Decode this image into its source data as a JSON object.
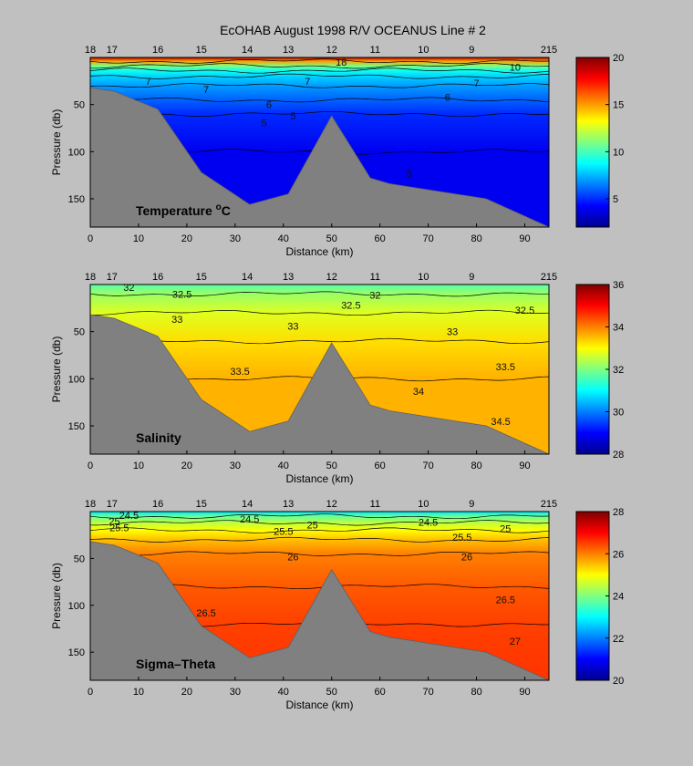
{
  "title": "EcOHAB   August 1998   R/V OCEANUS   Line # 2",
  "chart_data": [
    {
      "type": "heatmap",
      "panel_label_text": "Temperature ",
      "panel_label_sup": "o",
      "panel_label_suffix": "C",
      "xlabel": "Distance (km)",
      "ylabel": "Pressure (db)",
      "xlim": [
        0,
        95
      ],
      "ylim": [
        0,
        180
      ],
      "y_inverted": true,
      "x_ticks": [
        0,
        10,
        20,
        30,
        40,
        50,
        60,
        70,
        80,
        90
      ],
      "y_ticks": [
        50,
        100,
        150
      ],
      "station_labels": [
        "18",
        "17",
        "16",
        "15",
        "14",
        "13",
        "12",
        "11",
        "10",
        "9",
        "215"
      ],
      "station_km": [
        0,
        4.5,
        14,
        23,
        32.5,
        41,
        50,
        59,
        69,
        79,
        95
      ],
      "colorbar": {
        "min": 2,
        "max": 20,
        "ticks": [
          5,
          10,
          15,
          20
        ]
      },
      "bathymetry": [
        [
          0,
          32
        ],
        [
          5,
          36
        ],
        [
          14,
          55
        ],
        [
          23,
          122
        ],
        [
          33,
          156
        ],
        [
          41,
          145
        ],
        [
          50,
          62
        ],
        [
          58,
          128
        ],
        [
          62,
          134
        ],
        [
          82,
          150
        ],
        [
          95,
          180
        ]
      ],
      "field": {
        "surface_value": 19,
        "bands": [
          {
            "depth": 0,
            "value": 19
          },
          {
            "depth": 4,
            "value": 15
          },
          {
            "depth": 9,
            "value": 11
          },
          {
            "depth": 14,
            "value": 9
          },
          {
            "depth": 20,
            "value": 8
          },
          {
            "depth": 30,
            "value": 7
          },
          {
            "depth": 45,
            "value": 6
          },
          {
            "depth": 60,
            "value": 5
          },
          {
            "depth": 100,
            "value": 4
          },
          {
            "depth": 180,
            "value": 4
          }
        ]
      },
      "contour_labels": [
        {
          "x": 12,
          "y": 25,
          "text": "7"
        },
        {
          "x": 24,
          "y": 34,
          "text": "7"
        },
        {
          "x": 45,
          "y": 25,
          "text": "7"
        },
        {
          "x": 80,
          "y": 27,
          "text": "7"
        },
        {
          "x": 37,
          "y": 50,
          "text": "6"
        },
        {
          "x": 74,
          "y": 42,
          "text": "6"
        },
        {
          "x": 42,
          "y": 62,
          "text": "5"
        },
        {
          "x": 36,
          "y": 69,
          "text": "5"
        },
        {
          "x": 66,
          "y": 123,
          "text": "5"
        },
        {
          "x": 52,
          "y": 5,
          "text": "18"
        },
        {
          "x": 88,
          "y": 10,
          "text": "10"
        }
      ]
    },
    {
      "type": "heatmap",
      "panel_label_text": "Salinity",
      "panel_label_sup": "",
      "panel_label_suffix": "",
      "xlabel": "Distance (km)",
      "ylabel": "Pressure (db)",
      "xlim": [
        0,
        95
      ],
      "ylim": [
        0,
        180
      ],
      "y_inverted": true,
      "x_ticks": [
        0,
        10,
        20,
        30,
        40,
        50,
        60,
        70,
        80,
        90
      ],
      "y_ticks": [
        50,
        100,
        150
      ],
      "station_labels": [
        "18",
        "17",
        "16",
        "15",
        "14",
        "13",
        "12",
        "11",
        "10",
        "9",
        "215"
      ],
      "station_km": [
        0,
        4.5,
        14,
        23,
        32.5,
        41,
        50,
        59,
        69,
        79,
        95
      ],
      "colorbar": {
        "min": 28,
        "max": 36,
        "ticks": [
          28,
          30,
          32,
          34,
          36
        ]
      },
      "bathymetry": [
        [
          0,
          32
        ],
        [
          5,
          36
        ],
        [
          14,
          55
        ],
        [
          23,
          122
        ],
        [
          33,
          156
        ],
        [
          41,
          145
        ],
        [
          50,
          62
        ],
        [
          58,
          128
        ],
        [
          62,
          134
        ],
        [
          82,
          150
        ],
        [
          95,
          180
        ]
      ],
      "field": {
        "surface_value": 31.7,
        "bands": [
          {
            "depth": 0,
            "value": 31.7
          },
          {
            "depth": 10,
            "value": 32.2
          },
          {
            "depth": 30,
            "value": 32.75
          },
          {
            "depth": 60,
            "value": 33.25
          },
          {
            "depth": 100,
            "value": 33.6
          },
          {
            "depth": 180,
            "value": 33.6
          }
        ]
      },
      "contour_labels": [
        {
          "x": 8,
          "y": 3,
          "text": "32"
        },
        {
          "x": 19,
          "y": 10,
          "text": "32.5"
        },
        {
          "x": 59,
          "y": 11,
          "text": "32"
        },
        {
          "x": 54,
          "y": 22,
          "text": "32.5"
        },
        {
          "x": 90,
          "y": 27,
          "text": "32.5"
        },
        {
          "x": 18,
          "y": 37,
          "text": "33"
        },
        {
          "x": 42,
          "y": 44,
          "text": "33"
        },
        {
          "x": 75,
          "y": 50,
          "text": "33"
        },
        {
          "x": 31,
          "y": 92,
          "text": "33.5"
        },
        {
          "x": 86,
          "y": 87,
          "text": "33.5"
        },
        {
          "x": 68,
          "y": 113,
          "text": "34"
        },
        {
          "x": 85,
          "y": 145,
          "text": "34.5"
        }
      ]
    },
    {
      "type": "heatmap",
      "panel_label_text": "Sigma–Theta",
      "panel_label_sup": "",
      "panel_label_suffix": "",
      "xlabel": "Distance (km)",
      "ylabel": "Pressure (db)",
      "xlim": [
        0,
        95
      ],
      "ylim": [
        0,
        180
      ],
      "y_inverted": true,
      "x_ticks": [
        0,
        10,
        20,
        30,
        40,
        50,
        60,
        70,
        80,
        90
      ],
      "y_ticks": [
        50,
        100,
        150
      ],
      "station_labels": [
        "18",
        "17",
        "16",
        "15",
        "14",
        "13",
        "12",
        "11",
        "10",
        "9",
        "215"
      ],
      "station_km": [
        0,
        4.5,
        14,
        23,
        32.5,
        41,
        50,
        59,
        69,
        79,
        95
      ],
      "colorbar": {
        "min": 20,
        "max": 28,
        "ticks": [
          20,
          22,
          24,
          26,
          28
        ]
      },
      "bathymetry": [
        [
          0,
          32
        ],
        [
          5,
          36
        ],
        [
          14,
          55
        ],
        [
          23,
          122
        ],
        [
          33,
          156
        ],
        [
          41,
          145
        ],
        [
          50,
          62
        ],
        [
          58,
          128
        ],
        [
          62,
          134
        ],
        [
          82,
          150
        ],
        [
          95,
          180
        ]
      ],
      "field": {
        "surface_value": 22.8,
        "bands": [
          {
            "depth": 0,
            "value": 22.8
          },
          {
            "depth": 5,
            "value": 23.8
          },
          {
            "depth": 12,
            "value": 24.5
          },
          {
            "depth": 20,
            "value": 25
          },
          {
            "depth": 30,
            "value": 25.5
          },
          {
            "depth": 45,
            "value": 26
          },
          {
            "depth": 80,
            "value": 26.3
          },
          {
            "depth": 120,
            "value": 26.5
          },
          {
            "depth": 180,
            "value": 26.6
          }
        ]
      },
      "contour_labels": [
        {
          "x": 8,
          "y": 4,
          "text": "24.5"
        },
        {
          "x": 5,
          "y": 10,
          "text": "25"
        },
        {
          "x": 6,
          "y": 17,
          "text": "25.5"
        },
        {
          "x": 33,
          "y": 8,
          "text": "24.5"
        },
        {
          "x": 40,
          "y": 21,
          "text": "25.5"
        },
        {
          "x": 46,
          "y": 14,
          "text": "25"
        },
        {
          "x": 70,
          "y": 11,
          "text": "24.5"
        },
        {
          "x": 86,
          "y": 18,
          "text": "25"
        },
        {
          "x": 77,
          "y": 27,
          "text": "25.5"
        },
        {
          "x": 42,
          "y": 48,
          "text": "26"
        },
        {
          "x": 78,
          "y": 48,
          "text": "26"
        },
        {
          "x": 86,
          "y": 94,
          "text": "26.5"
        },
        {
          "x": 24,
          "y": 108,
          "text": "26.5"
        },
        {
          "x": 88,
          "y": 138,
          "text": "27"
        }
      ]
    }
  ]
}
